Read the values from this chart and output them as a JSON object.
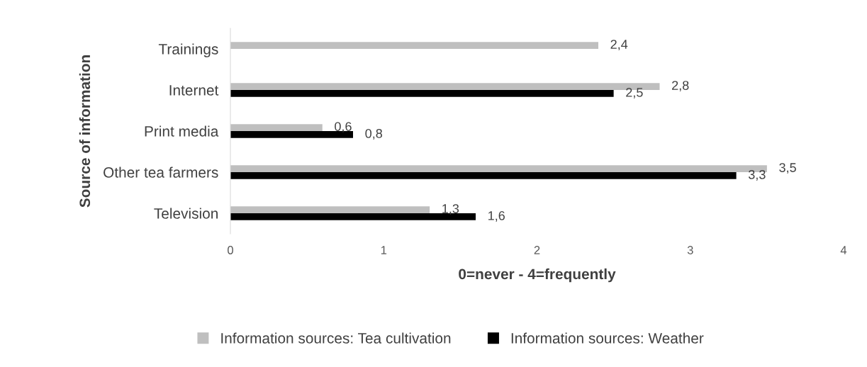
{
  "chart_data": {
    "type": "bar",
    "orientation": "horizontal",
    "xlabel": "0=never - 4=frequently",
    "ylabel": "Source of information",
    "categories": [
      "Trainings",
      "Internet",
      "Print media",
      "Other tea farmers",
      "Television"
    ],
    "series": [
      {
        "name": "Information sources: Tea cultivation",
        "color": "#bfbfbf",
        "values": [
          2.4,
          2.8,
          0.6,
          3.5,
          1.3
        ],
        "value_labels": [
          "2,4",
          "2,8",
          "0,6",
          "3,5",
          "1,3"
        ]
      },
      {
        "name": "Information sources: Weather",
        "color": "#000000",
        "values": [
          null,
          2.5,
          0.8,
          3.3,
          1.6
        ],
        "value_labels": [
          null,
          "2,5",
          "0,8",
          "3,3",
          "1,6"
        ]
      }
    ],
    "xlim": [
      0,
      4
    ],
    "xticks": [
      0,
      1,
      2,
      3,
      4
    ],
    "grid": false,
    "legend": "bottom"
  }
}
